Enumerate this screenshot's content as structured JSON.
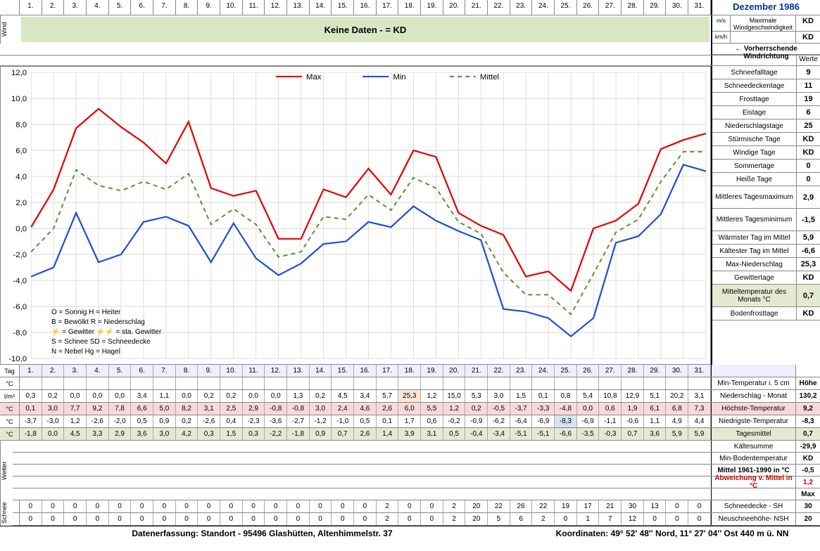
{
  "title": "Dezember 1986",
  "days": [
    "1.",
    "2.",
    "3.",
    "4.",
    "5.",
    "6.",
    "7.",
    "8.",
    "9.",
    "10.",
    "11.",
    "12.",
    "13.",
    "14.",
    "15.",
    "16.",
    "17.",
    "18.",
    "19.",
    "20.",
    "21.",
    "22.",
    "23.",
    "24.",
    "25.",
    "26.",
    "27.",
    "28.",
    "29.",
    "30.",
    "31."
  ],
  "wind": {
    "banner": "Keine Daten -  = KD",
    "max_label": "Maximale Windgeschwindigkeit",
    "ms_unit": "m/s",
    "kmh_unit": "km/h",
    "ms_val": "KD",
    "kmh_val": "KD",
    "dir_label": "←  Vorherrschende Windrichtung",
    "werte": "Werte"
  },
  "chart": {
    "ylim": [
      -10,
      12
    ],
    "ytick_step": 2,
    "grid_color": "#cccccc",
    "series": {
      "max": {
        "label": "Max",
        "color": "#e60000",
        "dash": "",
        "width": 2.2,
        "values": [
          0.1,
          3.0,
          7.7,
          9.2,
          7.8,
          6.6,
          5.0,
          8.2,
          3.1,
          2.5,
          2.9,
          -0.8,
          -0.8,
          3.0,
          2.4,
          4.6,
          2.6,
          6.0,
          5.5,
          1.2,
          0.2,
          -0.5,
          -3.7,
          -3.3,
          -4.8,
          0.0,
          0.6,
          1.9,
          6.1,
          6.8,
          7.3
        ]
      },
      "min": {
        "label": "Min",
        "color": "#1f4fd6",
        "dash": "",
        "width": 2.2,
        "values": [
          -3.7,
          -3.0,
          1.2,
          -2.6,
          -2.0,
          0.5,
          0.9,
          0.2,
          -2.6,
          0.4,
          -2.3,
          -3.6,
          -2.7,
          -1.2,
          -1.0,
          0.5,
          0.1,
          1.7,
          0.6,
          -0.2,
          -0.9,
          -6.2,
          -6.4,
          -6.9,
          -8.3,
          -6.9,
          -1.1,
          -0.6,
          1.1,
          4.9,
          4.4
        ]
      },
      "mittel": {
        "label": "Mittel",
        "color": "#6a8a3a",
        "dash": "6,5",
        "width": 2.0,
        "values": [
          -1.8,
          0.0,
          4.5,
          3.3,
          2.9,
          3.6,
          3.0,
          4.2,
          0.3,
          1.5,
          0.3,
          -2.2,
          -1.8,
          0.9,
          0.7,
          2.6,
          1.4,
          3.9,
          3.1,
          0.5,
          -0.4,
          -3.4,
          -5.1,
          -5.1,
          -6.6,
          -3.5,
          -0.3,
          0.7,
          3.6,
          5.9,
          5.9
        ]
      }
    },
    "legend_box": [
      "O = Sonnig        H = Heiter",
      "B = Bewölkt        R = Niederschlag",
      "⚡ = Gewitter      ⚡⚡ = sta. Gewitter",
      "S = Schnee        SD = Schneedecke",
      "N = Nebel          Hg = Hagel"
    ]
  },
  "side_stats": [
    {
      "label": "Schneefalltage",
      "val": "9"
    },
    {
      "label": "Schneedeckentage",
      "val": "11"
    },
    {
      "label": "Frosttage",
      "val": "19"
    },
    {
      "label": "Eistage",
      "val": "6"
    },
    {
      "label": "Niederschlagstage",
      "val": "25"
    },
    {
      "label": "Stürmische Tage",
      "val": "KD"
    },
    {
      "label": "Windige Tage",
      "val": "KD"
    },
    {
      "label": "Sommertage",
      "val": "0"
    },
    {
      "label": "Heiße Tage",
      "val": "0"
    },
    {
      "label": "Mittleres Tagesmaximum",
      "val": "2,9",
      "tall": true
    },
    {
      "label": "Mittleres Tagesminimum",
      "val": "-1,5",
      "tall": true
    },
    {
      "label": "Wärmster Tag im Mittel",
      "val": "5,9"
    },
    {
      "label": "Kältester Tag im Mittel",
      "val": "-6,6"
    },
    {
      "label": "Max-Niederschlag",
      "val": "25,3"
    },
    {
      "label": "Gewittertage",
      "val": "KD"
    },
    {
      "label": "Mitteltemperatur des Monats °C",
      "val": "0,7",
      "tall": true,
      "bg": "hl-green"
    },
    {
      "label": "Bodenfrosttage",
      "val": "KD"
    }
  ],
  "tag_row_label": "Tag",
  "data_rows": [
    {
      "unit": "°C",
      "right": "Min-Temperatur i. 5 cm",
      "sum": "Höhe",
      "cells_empty": true
    },
    {
      "unit": "l/m²",
      "right": "Niederschlag - Monat",
      "sum": "130,2",
      "cells": [
        "0,3",
        "0,2",
        "0,0",
        "0,0",
        "0,0",
        "3,4",
        "1,1",
        "0,0",
        "0,2",
        "0,2",
        "0,0",
        "0,0",
        "1,3",
        "0,2",
        "4,5",
        "3,4",
        "5,7",
        "25,3",
        "1,2",
        "15,0",
        "5,3",
        "3,0",
        "1,5",
        "0,1",
        "0,8",
        "5,4",
        "10,8",
        "12,9",
        "5,1",
        "20,2",
        "3,1"
      ],
      "hl": {
        "17": "hl-peach"
      }
    },
    {
      "unit": "°C",
      "right": "Höchste-Temperatur",
      "sum": "9,2",
      "row_bg": "hl-pink",
      "cells": [
        "0,1",
        "3,0",
        "7,7",
        "9,2",
        "7,8",
        "6,6",
        "5,0",
        "8,2",
        "3,1",
        "2,5",
        "2,9",
        "-0,8",
        "-0,8",
        "3,0",
        "2,4",
        "4,6",
        "2,6",
        "6,0",
        "5,5",
        "1,2",
        "0,2",
        "-0,5",
        "-3,7",
        "-3,3",
        "-4,8",
        "0,0",
        "0,6",
        "1,9",
        "6,1",
        "6,8",
        "7,3"
      ]
    },
    {
      "unit": "°C",
      "right": "Niedrigste-Temperatur",
      "sum": "-8,3",
      "cells": [
        "-3,7",
        "-3,0",
        "1,2",
        "-2,6",
        "-2,0",
        "0,5",
        "0,9",
        "0,2",
        "-2,6",
        "0,4",
        "-2,3",
        "-3,6",
        "-2,7",
        "-1,2",
        "-1,0",
        "0,5",
        "0,1",
        "1,7",
        "0,6",
        "-0,2",
        "-0,9",
        "-6,2",
        "-6,4",
        "-6,9",
        "-8,3",
        "-6,9",
        "-1,1",
        "-0,6",
        "1,1",
        "4,9",
        "4,4"
      ],
      "hl": {
        "24": "hl-blue"
      }
    },
    {
      "unit": "°C",
      "right": "Tagesmittel",
      "sum": "0,7",
      "row_bg": "hl-green",
      "cells": [
        "-1,8",
        "0,0",
        "4,5",
        "3,3",
        "2,9",
        "3,6",
        "3,0",
        "4,2",
        "0,3",
        "1,5",
        "0,3",
        "-2,2",
        "-1,8",
        "0,9",
        "0,7",
        "2,6",
        "1,4",
        "3,9",
        "3,1",
        "0,5",
        "-0,4",
        "-3,4",
        "-5,1",
        "-5,1",
        "-6,6",
        "-3,5",
        "-0,3",
        "0,7",
        "3,6",
        "5,9",
        "5,9"
      ]
    }
  ],
  "summary_rows": [
    {
      "label": "Kältesumme",
      "val": "-29,9"
    },
    {
      "label": "Min-Bodentemperatur",
      "val": "KD"
    },
    {
      "label": "Mittel 1961-1990 in °C",
      "val": "-0,5",
      "bold": true
    },
    {
      "label": "Abweichung v. Mittel in °C",
      "val": "1,2",
      "red": true
    },
    {
      "label": "",
      "val": "Max",
      "bold": true
    }
  ],
  "snow_rows": [
    {
      "right": "Schneedecke  -   SH",
      "sum": "30",
      "cells": [
        "0",
        "0",
        "0",
        "0",
        "0",
        "0",
        "0",
        "0",
        "0",
        "0",
        "0",
        "0",
        "0",
        "0",
        "0",
        "0",
        "2",
        "0",
        "0",
        "2",
        "20",
        "22",
        "26",
        "22",
        "19",
        "17",
        "21",
        "30",
        "13",
        "0",
        "0"
      ]
    },
    {
      "right": "Neuschneehöhe- NSH",
      "sum": "20",
      "cells": [
        "0",
        "0",
        "0",
        "0",
        "0",
        "0",
        "0",
        "0",
        "0",
        "0",
        "0",
        "0",
        "0",
        "0",
        "0",
        "0",
        "2",
        "0",
        "0",
        "2",
        "20",
        "5",
        "6",
        "2",
        "0",
        "1",
        "7",
        "12",
        "0",
        "0",
        "0"
      ]
    }
  ],
  "wetter_label": "Wetter",
  "schnee_label": "Schnee",
  "footer": {
    "left": "Datenerfassung:  Standort -  95496  Glashütten, Altenhimmelstr. 37",
    "right": "Koordinaten:  49° 52' 48'' Nord,   11° 27' 04'' Ost   440 m ü. NN"
  }
}
